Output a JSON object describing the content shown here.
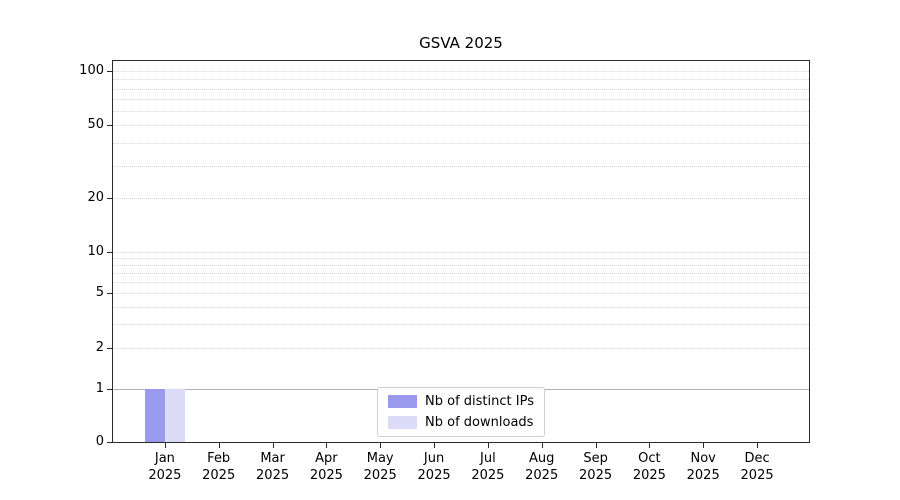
{
  "chart_data": {
    "type": "bar",
    "title": "GSVA 2025",
    "categories": [
      "Jan",
      "Feb",
      "Mar",
      "Apr",
      "May",
      "Jun",
      "Jul",
      "Aug",
      "Sep",
      "Oct",
      "Nov",
      "Dec"
    ],
    "x_year_label": "2025",
    "series": [
      {
        "name": "Nb of distinct IPs",
        "color": "#9999ee",
        "values": [
          1,
          0,
          0,
          0,
          0,
          0,
          0,
          0,
          0,
          0,
          0,
          0
        ]
      },
      {
        "name": "Nb of downloads",
        "color": "#dcdcf8",
        "values": [
          1,
          0,
          0,
          0,
          0,
          0,
          0,
          0,
          0,
          0,
          0,
          0
        ]
      }
    ],
    "y_axis": {
      "scale": "symlog",
      "ticks": [
        0,
        1,
        2,
        5,
        10,
        20,
        50,
        100
      ],
      "major_gridlines": [
        1
      ],
      "minor_gridlines": [
        2,
        3,
        4,
        5,
        6,
        7,
        8,
        9,
        10,
        20,
        30,
        40,
        50,
        60,
        70,
        80,
        90,
        100
      ],
      "ylim": [
        0,
        110
      ]
    },
    "grid": true,
    "legend": {
      "position": "lower center",
      "entries": [
        "Nb of distinct IPs",
        "Nb of downloads"
      ]
    }
  }
}
